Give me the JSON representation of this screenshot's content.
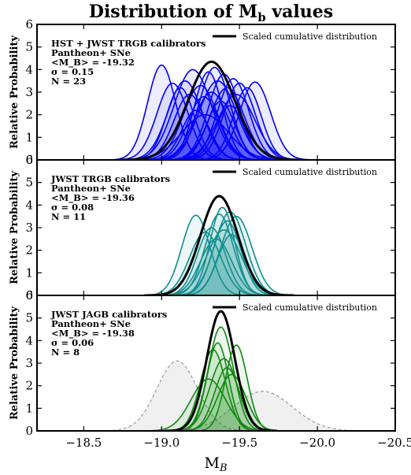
{
  "chart_data": {
    "type": "area",
    "title": "Distribution of M",
    "title_sub": "b",
    "title_end": " values",
    "xlabel": "M",
    "xlabel_sub": "B",
    "ylabel": "Relative Probability",
    "xlim": [
      -18.2,
      -20.5
    ],
    "xticks": [
      -18.5,
      -19.0,
      -19.5,
      -20.0,
      -20.5
    ],
    "xtick_labels": [
      "−18.5",
      "−19.0",
      "−19.5",
      "−20.0",
      "−20.5"
    ],
    "ylim": [
      0,
      6
    ],
    "yticks": [
      0,
      1,
      2,
      3,
      4,
      5,
      6
    ],
    "legend_label": "Scaled cumulative distribution",
    "legend_position": "top-right",
    "panels": [
      {
        "name": "HST + JWST TRGB",
        "lines": [
          "HST + JWST TRGB calibrators",
          "Pantheon+ SNe",
          "<M_B> = -19.32",
          "σ = 0.15",
          "N = 23"
        ],
        "color": "#0000ff",
        "fill": "#0000ff",
        "cumulative": {
          "mu": -19.32,
          "sigma": 0.15,
          "peak": 4.35
        },
        "calibrators": [
          {
            "mu": -19.0,
            "sigma": 0.09,
            "peak": 4.2
          },
          {
            "mu": -19.07,
            "sigma": 0.1,
            "peak": 3.4
          },
          {
            "mu": -19.12,
            "sigma": 0.09,
            "peak": 3.2
          },
          {
            "mu": -19.15,
            "sigma": 0.11,
            "peak": 3.5
          },
          {
            "mu": -19.18,
            "sigma": 0.1,
            "peak": 2.9
          },
          {
            "mu": -19.2,
            "sigma": 0.12,
            "peak": 4.0
          },
          {
            "mu": -19.22,
            "sigma": 0.09,
            "peak": 2.2
          },
          {
            "mu": -19.25,
            "sigma": 0.11,
            "peak": 3.3
          },
          {
            "mu": -19.27,
            "sigma": 0.1,
            "peak": 2.8
          },
          {
            "mu": -19.3,
            "sigma": 0.09,
            "peak": 3.9
          },
          {
            "mu": -19.32,
            "sigma": 0.11,
            "peak": 3.0
          },
          {
            "mu": -19.34,
            "sigma": 0.1,
            "peak": 4.1
          },
          {
            "mu": -19.36,
            "sigma": 0.12,
            "peak": 3.5
          },
          {
            "mu": -19.38,
            "sigma": 0.09,
            "peak": 2.6
          },
          {
            "mu": -19.4,
            "sigma": 0.1,
            "peak": 3.8
          },
          {
            "mu": -19.42,
            "sigma": 0.11,
            "peak": 3.2
          },
          {
            "mu": -19.44,
            "sigma": 0.09,
            "peak": 2.4
          },
          {
            "mu": -19.46,
            "sigma": 0.1,
            "peak": 3.6
          },
          {
            "mu": -19.48,
            "sigma": 0.12,
            "peak": 2.9
          },
          {
            "mu": -19.5,
            "sigma": 0.1,
            "peak": 3.4
          },
          {
            "mu": -19.55,
            "sigma": 0.09,
            "peak": 3.2
          },
          {
            "mu": -19.6,
            "sigma": 0.1,
            "peak": 3.45
          },
          {
            "mu": -19.28,
            "sigma": 0.15,
            "peak": 2.0
          }
        ]
      },
      {
        "name": "JWST TRGB",
        "lines": [
          "JWST TRGB calibrators",
          "Pantheon+ SNe",
          "<M_B> = -19.36",
          "σ = 0.08",
          "N = 11"
        ],
        "color": "#108f8f",
        "fill": "#108f8f",
        "cumulative": {
          "mu": -19.37,
          "sigma": 0.12,
          "peak": 4.4
        },
        "calibrators": [
          {
            "mu": -19.22,
            "sigma": 0.09,
            "peak": 3.55
          },
          {
            "mu": -19.28,
            "sigma": 0.1,
            "peak": 2.8
          },
          {
            "mu": -19.32,
            "sigma": 0.09,
            "peak": 3.0
          },
          {
            "mu": -19.35,
            "sigma": 0.1,
            "peak": 2.5
          },
          {
            "mu": -19.37,
            "sigma": 0.09,
            "peak": 3.6
          },
          {
            "mu": -19.39,
            "sigma": 0.08,
            "peak": 3.9
          },
          {
            "mu": -19.4,
            "sigma": 0.11,
            "peak": 2.9
          },
          {
            "mu": -19.42,
            "sigma": 0.09,
            "peak": 3.3
          },
          {
            "mu": -19.44,
            "sigma": 0.1,
            "peak": 3.7
          },
          {
            "mu": -19.45,
            "sigma": 0.09,
            "peak": 2.7
          },
          {
            "mu": -19.48,
            "sigma": 0.1,
            "peak": 3.5
          }
        ]
      },
      {
        "name": "JWST JAGB",
        "lines": [
          "JWST JAGB calibrators",
          "Pantheon+ SNe",
          "<M_B> = -19.38",
          "σ = 0.06",
          "N = 8"
        ],
        "color": "#118811",
        "fill": "#118811",
        "cumulative": {
          "mu": -19.38,
          "sigma": 0.09,
          "peak": 5.3
        },
        "calibrators": [
          {
            "mu": -19.3,
            "sigma": 0.11,
            "peak": 2.3
          },
          {
            "mu": -19.33,
            "sigma": 0.08,
            "peak": 3.6
          },
          {
            "mu": -19.36,
            "sigma": 0.07,
            "peak": 3.9
          },
          {
            "mu": -19.38,
            "sigma": 0.08,
            "peak": 4.6
          },
          {
            "mu": -19.4,
            "sigma": 0.09,
            "peak": 3.2
          },
          {
            "mu": -19.42,
            "sigma": 0.08,
            "peak": 2.8
          },
          {
            "mu": -19.45,
            "sigma": 0.09,
            "peak": 2.5
          },
          {
            "mu": -19.48,
            "sigma": 0.07,
            "peak": 3.8
          }
        ],
        "dashed": [
          {
            "mu": -19.1,
            "sigma": 0.13,
            "peak": 3.1
          },
          {
            "mu": -19.65,
            "sigma": 0.19,
            "peak": 1.75
          }
        ]
      }
    ]
  }
}
